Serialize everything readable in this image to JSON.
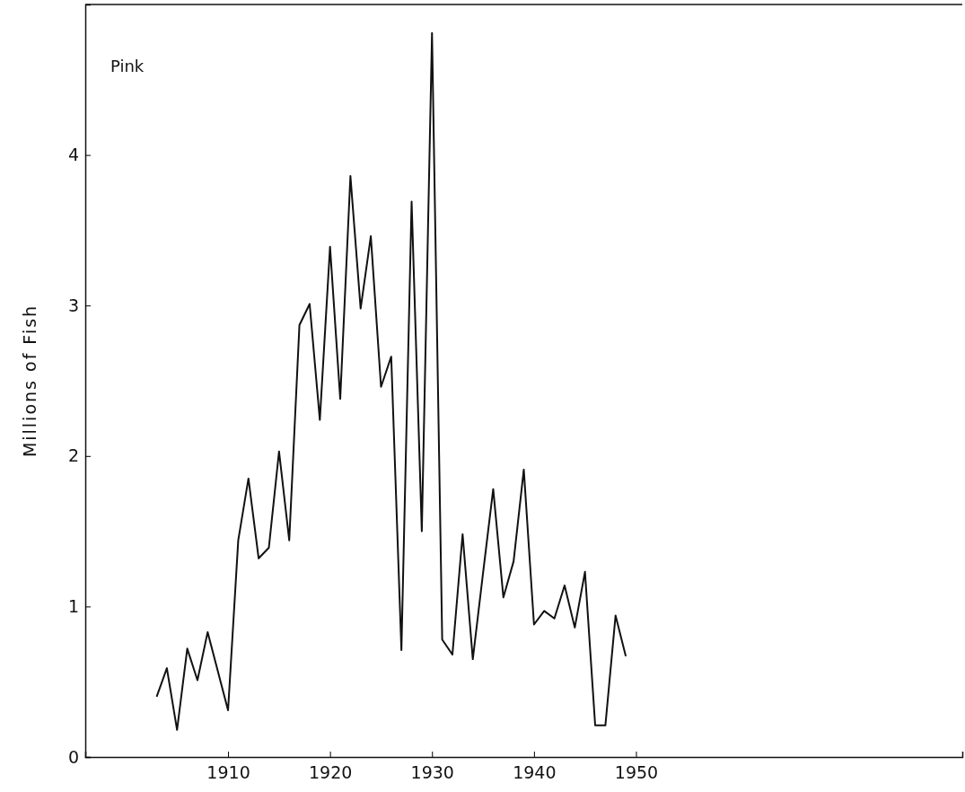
{
  "chart_data": {
    "type": "line",
    "title": "Pink",
    "ylabel": "Millions of Fish",
    "x": [
      1903,
      1904,
      1905,
      1906,
      1907,
      1908,
      1909,
      1910,
      1911,
      1912,
      1913,
      1914,
      1915,
      1916,
      1917,
      1918,
      1919,
      1920,
      1921,
      1922,
      1923,
      1924,
      1925,
      1926,
      1927,
      1928,
      1929,
      1930,
      1931,
      1932,
      1933,
      1934,
      1935,
      1936,
      1937,
      1938,
      1939,
      1940,
      1941,
      1942,
      1943,
      1944,
      1945,
      1946,
      1947,
      1948,
      1949
    ],
    "series": [
      {
        "color": "#111111",
        "values": [
          0.4,
          0.59,
          0.18,
          0.72,
          0.51,
          0.83,
          0.57,
          0.31,
          1.44,
          1.85,
          1.32,
          1.39,
          2.03,
          1.44,
          2.87,
          3.01,
          2.24,
          3.39,
          2.38,
          3.86,
          2.98,
          3.46,
          2.46,
          2.66,
          0.71,
          3.69,
          1.5,
          4.81,
          0.78,
          0.68,
          1.48,
          0.65,
          1.22,
          1.78,
          1.06,
          1.3,
          1.91,
          0.88,
          0.97,
          0.92,
          1.14,
          0.86,
          1.23,
          0.21,
          0.21,
          0.94,
          0.67
        ]
      }
    ],
    "xlim": [
      1896,
      1982
    ],
    "ylim": [
      0,
      5
    ],
    "xticks": [
      1910,
      1920,
      1930,
      1940,
      1950
    ],
    "yticks": [
      0,
      1,
      2,
      3,
      4
    ],
    "grid": false,
    "legend": false,
    "marker": "none",
    "line_style": "solid"
  }
}
